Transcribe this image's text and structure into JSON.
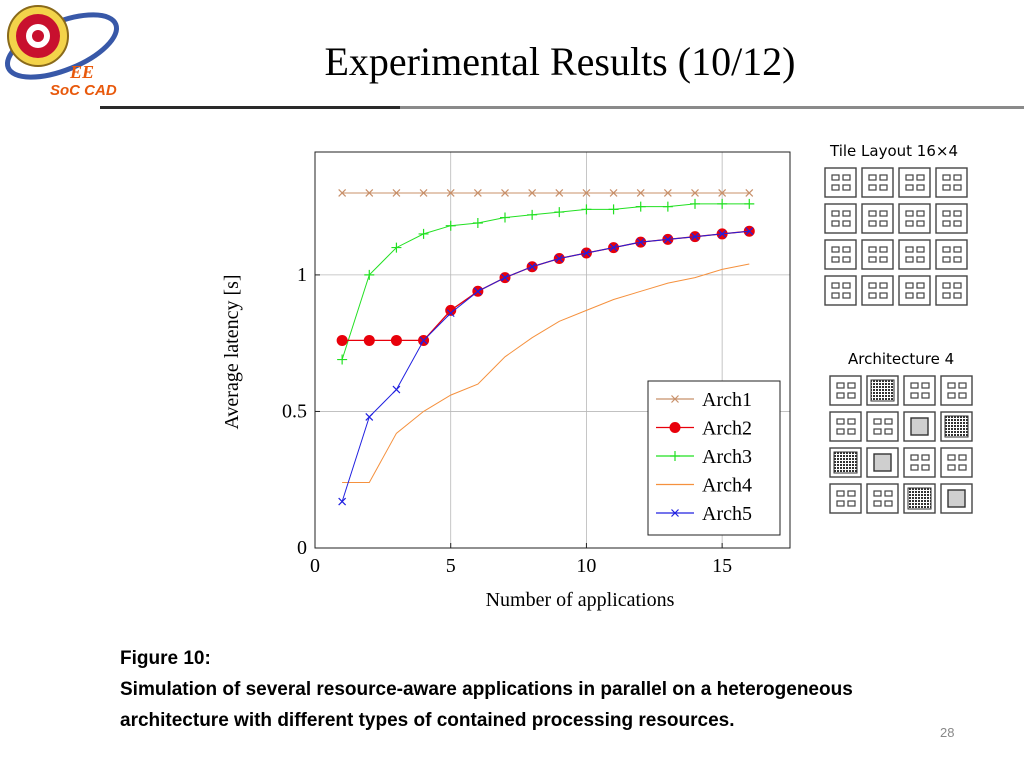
{
  "header": {
    "title": "Experimental Results (10/12)",
    "logo_text": "SoC CAD",
    "logo_mark": "EE"
  },
  "caption": {
    "line1": "Figure 10:",
    "line2": "Simulation of several resource-aware applications in parallel on a heterogeneous architecture with different types of contained processing resources."
  },
  "page_number": "28",
  "side_panels": {
    "tile_layout_title": "Tile Layout 16×4",
    "architecture_title": "Architecture 4",
    "architecture_cells": [
      "small",
      "dots",
      "small",
      "small",
      "small",
      "small",
      "big",
      "dots",
      "dots",
      "big",
      "small",
      "small",
      "small",
      "small",
      "dots",
      "big"
    ]
  },
  "colors": {
    "Arch1": "#c8906a",
    "Arch2": "#e8000b",
    "Arch3": "#22e022",
    "Arch4": "#f5913e",
    "Arch5": "#2020e0"
  },
  "chart_data": {
    "type": "line",
    "xlabel": "Number of applications",
    "ylabel": "Average latency [s]",
    "xlim": [
      0,
      17.5
    ],
    "ylim": [
      0,
      1.45
    ],
    "xticks": [
      0,
      5,
      10,
      15
    ],
    "yticks": [
      0,
      0.5,
      1
    ],
    "ytick_labels": [
      "0",
      "0.5",
      "1"
    ],
    "grid": true,
    "legend_position": "bottom-right",
    "x": [
      1,
      2,
      3,
      4,
      5,
      6,
      7,
      8,
      9,
      10,
      11,
      12,
      13,
      14,
      15,
      16
    ],
    "series": [
      {
        "name": "Arch1",
        "marker": "x",
        "values": [
          1.3,
          1.3,
          1.3,
          1.3,
          1.3,
          1.3,
          1.3,
          1.3,
          1.3,
          1.3,
          1.3,
          1.3,
          1.3,
          1.3,
          1.3,
          1.3
        ]
      },
      {
        "name": "Arch2",
        "marker": "o",
        "values": [
          0.76,
          0.76,
          0.76,
          0.76,
          0.87,
          0.94,
          0.99,
          1.03,
          1.06,
          1.08,
          1.1,
          1.12,
          1.13,
          1.14,
          1.15,
          1.16
        ]
      },
      {
        "name": "Arch3",
        "marker": "+",
        "values": [
          0.69,
          1.0,
          1.1,
          1.15,
          1.18,
          1.19,
          1.21,
          1.22,
          1.23,
          1.24,
          1.24,
          1.25,
          1.25,
          1.26,
          1.26,
          1.26
        ]
      },
      {
        "name": "Arch4",
        "marker": "none",
        "values": [
          0.24,
          0.24,
          0.42,
          0.5,
          0.56,
          0.6,
          0.7,
          0.77,
          0.83,
          0.87,
          0.91,
          0.94,
          0.97,
          0.99,
          1.02,
          1.04
        ]
      },
      {
        "name": "Arch5",
        "marker": "x",
        "values": [
          0.17,
          0.48,
          0.58,
          0.76,
          0.86,
          0.94,
          0.99,
          1.03,
          1.06,
          1.08,
          1.1,
          1.12,
          1.13,
          1.14,
          1.15,
          1.16
        ]
      }
    ]
  }
}
